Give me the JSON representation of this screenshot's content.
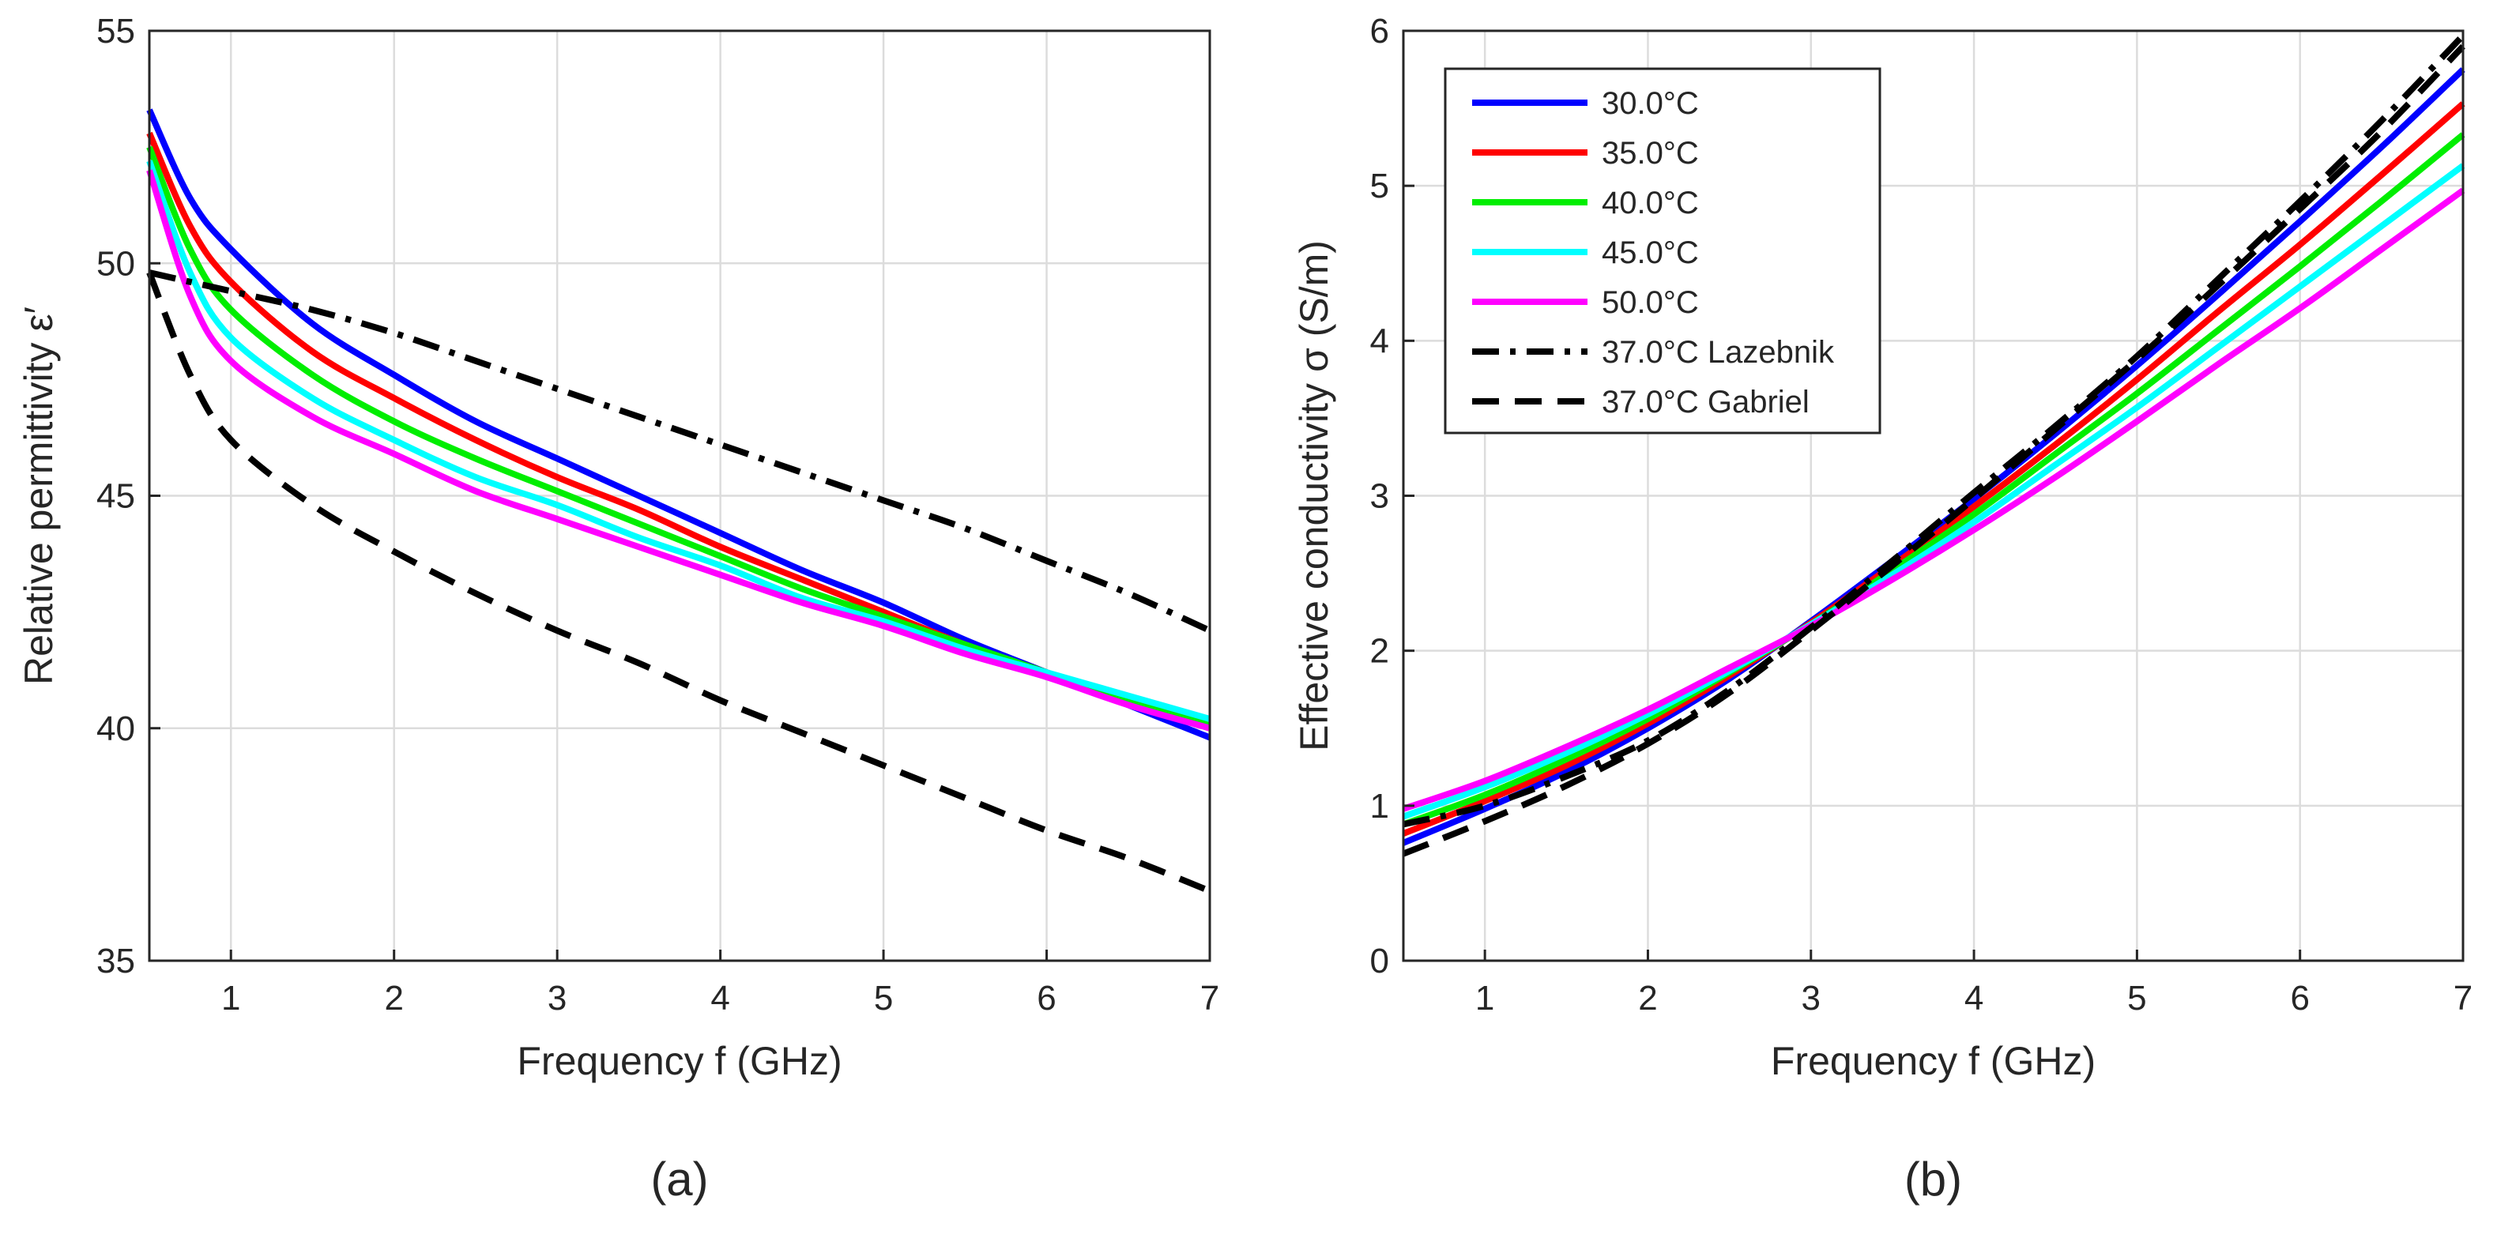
{
  "chart_data": [
    {
      "type": "line",
      "panel_label": "(a)",
      "title": "",
      "xlabel": "Frequency f (GHz)",
      "ylabel": "Relative permittivity ε′",
      "xlim": [
        0.5,
        7
      ],
      "ylim": [
        35,
        55
      ],
      "xticks": [
        1,
        2,
        3,
        4,
        5,
        6,
        7
      ],
      "yticks": [
        35,
        40,
        45,
        50,
        55
      ],
      "grid": true,
      "x": [
        0.5,
        0.75,
        1,
        1.5,
        2,
        2.5,
        3,
        3.5,
        4,
        4.5,
        5,
        5.5,
        6,
        6.5,
        7
      ],
      "series": [
        {
          "name": "30.0°C",
          "color": "#0000ff",
          "style": "solid",
          "values": [
            53.3,
            51.4,
            50.3,
            48.7,
            47.6,
            46.6,
            45.8,
            45.0,
            44.2,
            43.4,
            42.7,
            41.9,
            41.2,
            40.5,
            39.8
          ]
        },
        {
          "name": "35.0°C",
          "color": "#ff0000",
          "style": "solid",
          "values": [
            52.8,
            50.8,
            49.6,
            48.1,
            47.1,
            46.2,
            45.4,
            44.7,
            43.9,
            43.2,
            42.5,
            41.8,
            41.2,
            40.6,
            40.0
          ]
        },
        {
          "name": "40.0°C",
          "color": "#00ee00",
          "style": "solid",
          "values": [
            52.5,
            50.3,
            49.0,
            47.6,
            46.6,
            45.8,
            45.1,
            44.4,
            43.7,
            43.0,
            42.4,
            41.8,
            41.2,
            40.6,
            40.1
          ]
        },
        {
          "name": "45.0°C",
          "color": "#00ffff",
          "style": "solid",
          "values": [
            52.2,
            49.8,
            48.4,
            47.1,
            46.2,
            45.4,
            44.8,
            44.1,
            43.5,
            42.8,
            42.3,
            41.7,
            41.2,
            40.7,
            40.2
          ]
        },
        {
          "name": "50.0°C",
          "color": "#ff00ff",
          "style": "solid",
          "values": [
            52.0,
            49.3,
            47.9,
            46.7,
            45.9,
            45.1,
            44.5,
            43.9,
            43.3,
            42.7,
            42.2,
            41.6,
            41.1,
            40.5,
            40.0
          ]
        },
        {
          "name": "37.0°C Lazebnik",
          "color": "#000000",
          "style": "dashdot",
          "values": [
            49.8,
            49.6,
            49.4,
            49.0,
            48.5,
            47.9,
            47.3,
            46.7,
            46.1,
            45.5,
            44.9,
            44.3,
            43.6,
            42.9,
            42.1
          ]
        },
        {
          "name": "37.0°C Gabriel",
          "color": "#000000",
          "style": "dashed",
          "values": [
            49.8,
            47.6,
            46.2,
            44.8,
            43.8,
            42.9,
            42.1,
            41.4,
            40.6,
            39.9,
            39.2,
            38.5,
            37.8,
            37.2,
            36.5
          ]
        }
      ]
    },
    {
      "type": "line",
      "panel_label": "(b)",
      "title": "",
      "xlabel": "Frequency f (GHz)",
      "ylabel": "Effective conductivity σ (S/m)",
      "xlim": [
        0.5,
        7
      ],
      "ylim": [
        0,
        6
      ],
      "xticks": [
        1,
        2,
        3,
        4,
        5,
        6,
        7
      ],
      "yticks": [
        0,
        1,
        2,
        3,
        4,
        5,
        6
      ],
      "grid": true,
      "legend": "top-left",
      "x": [
        0.5,
        1,
        1.5,
        2,
        2.5,
        3,
        3.5,
        4,
        4.5,
        5,
        5.5,
        6,
        6.5,
        7
      ],
      "series": [
        {
          "name": "30.0°C",
          "color": "#0000ff",
          "style": "solid",
          "values": [
            0.76,
            0.98,
            1.22,
            1.5,
            1.82,
            2.19,
            2.58,
            2.98,
            3.4,
            3.84,
            4.3,
            4.77,
            5.25,
            5.75
          ]
        },
        {
          "name": "35.0°C",
          "color": "#ff0000",
          "style": "solid",
          "values": [
            0.82,
            1.03,
            1.26,
            1.53,
            1.84,
            2.18,
            2.55,
            2.93,
            3.33,
            3.75,
            4.19,
            4.62,
            5.07,
            5.53
          ]
        },
        {
          "name": "40.0°C",
          "color": "#00ee00",
          "style": "solid",
          "values": [
            0.88,
            1.07,
            1.3,
            1.56,
            1.86,
            2.17,
            2.52,
            2.88,
            3.27,
            3.66,
            4.07,
            4.48,
            4.9,
            5.33
          ]
        },
        {
          "name": "45.0°C",
          "color": "#00ffff",
          "style": "solid",
          "values": [
            0.93,
            1.12,
            1.34,
            1.59,
            1.87,
            2.17,
            2.49,
            2.83,
            3.2,
            3.57,
            3.96,
            4.35,
            4.74,
            5.13
          ]
        },
        {
          "name": "50.0°C",
          "color": "#ff00ff",
          "style": "solid",
          "values": [
            0.98,
            1.16,
            1.38,
            1.62,
            1.89,
            2.16,
            2.46,
            2.78,
            3.12,
            3.48,
            3.85,
            4.21,
            4.59,
            4.97
          ]
        },
        {
          "name": "37.0°C Lazebnik",
          "color": "#000000",
          "style": "dashdot",
          "values": [
            0.88,
            1.0,
            1.19,
            1.42,
            1.75,
            2.15,
            2.58,
            3.02,
            3.45,
            3.9,
            4.4,
            4.9,
            5.42,
            5.97
          ]
        },
        {
          "name": "37.0°C Gabriel",
          "color": "#000000",
          "style": "dashed",
          "values": [
            0.69,
            0.9,
            1.13,
            1.4,
            1.73,
            2.13,
            2.55,
            2.98,
            3.43,
            3.88,
            4.36,
            4.85,
            5.35,
            5.9
          ]
        }
      ]
    }
  ]
}
